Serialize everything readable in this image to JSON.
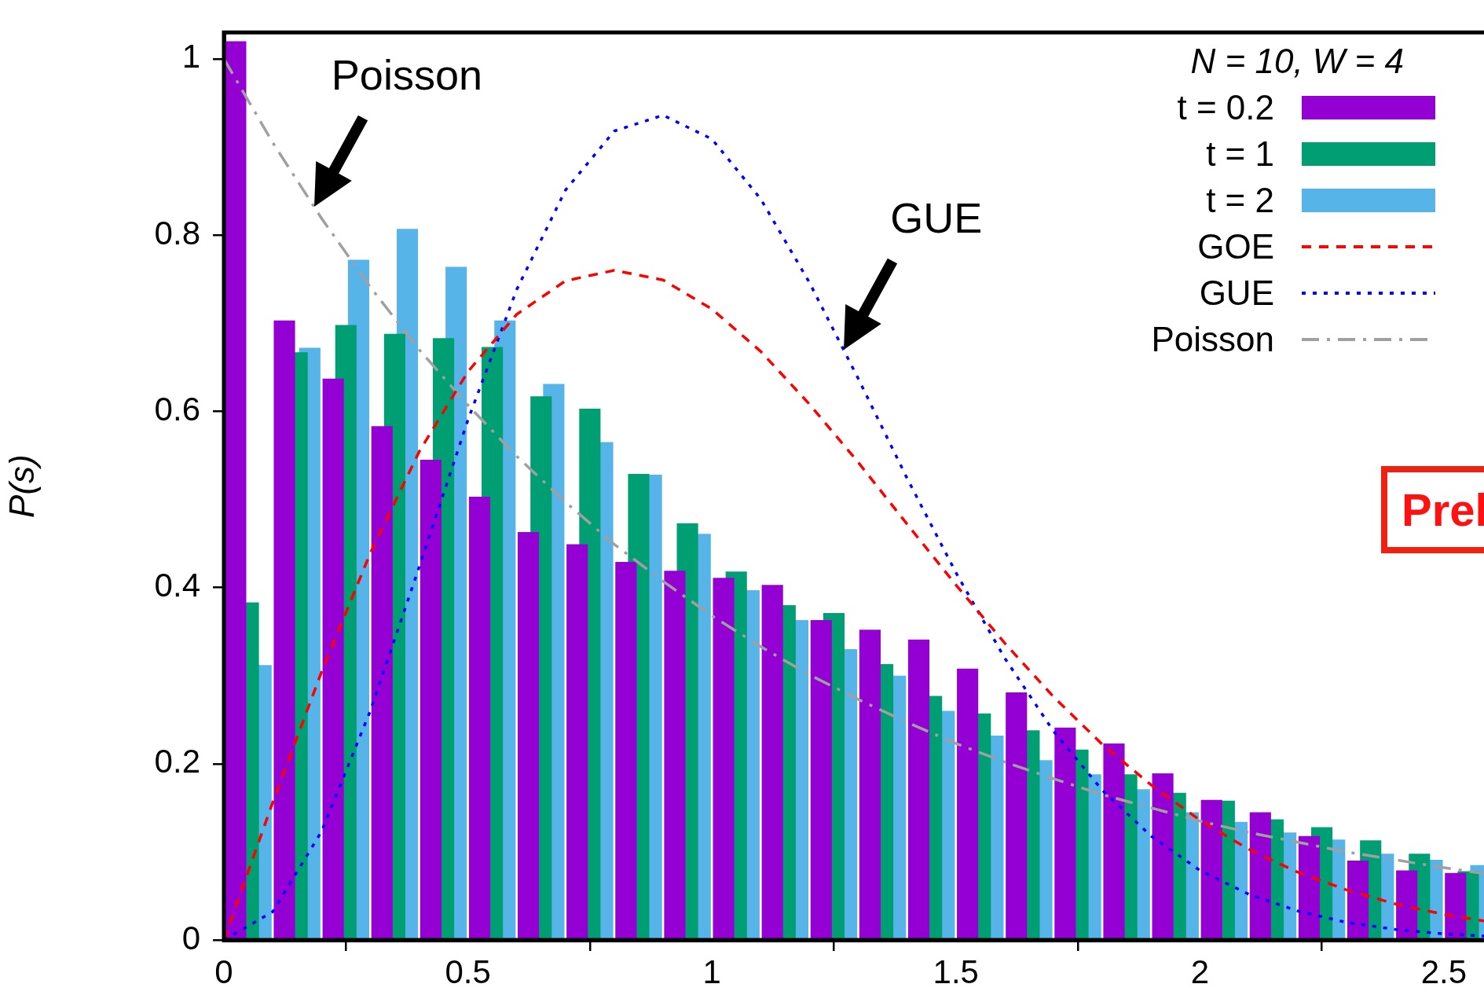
{
  "chart_data": {
    "type": "histogram",
    "ylabel": "P(s)",
    "legend_title": "N = 10, W = 4",
    "legend": "top right",
    "grid": false,
    "bins": [
      0,
      0.1,
      0.2,
      0.3,
      0.4,
      0.5,
      0.6,
      0.7,
      0.8,
      0.9,
      1.0,
      1.1,
      1.2,
      1.3,
      1.4,
      1.5,
      1.6,
      1.7,
      1.8,
      1.9,
      2.0,
      2.1,
      2.2,
      2.3,
      2.4,
      2.5,
      2.6
    ],
    "series": [
      {
        "name": "t = 0.2",
        "color": "#9400d3",
        "values": [
          1.02,
          0.703,
          0.637,
          0.583,
          0.545,
          0.503,
          0.463,
          0.449,
          0.429,
          0.419,
          0.411,
          0.403,
          0.363,
          0.352,
          0.341,
          0.308,
          0.281,
          0.241,
          0.223,
          0.189,
          0.159,
          0.145,
          0.118,
          0.09,
          0.079,
          0.076
        ]
      },
      {
        "name": "t = 1",
        "color": "#009e73",
        "values": [
          0.383,
          0.667,
          0.698,
          0.688,
          0.683,
          0.673,
          0.617,
          0.603,
          0.529,
          0.473,
          0.418,
          0.38,
          0.371,
          0.313,
          0.277,
          0.257,
          0.238,
          0.216,
          0.188,
          0.167,
          0.158,
          0.137,
          0.128,
          0.113,
          0.098,
          0.078
        ]
      },
      {
        "name": "t = 2",
        "color": "#56b4e9",
        "values": [
          0.312,
          0.672,
          0.772,
          0.807,
          0.764,
          0.703,
          0.631,
          0.565,
          0.528,
          0.461,
          0.397,
          0.363,
          0.33,
          0.3,
          0.26,
          0.232,
          0.204,
          0.188,
          0.171,
          0.145,
          0.134,
          0.122,
          0.114,
          0.098,
          0.091,
          0.085
        ]
      },
      {
        "name": "GOE",
        "type": "line",
        "color": "#ff0000",
        "line_style": "dashed",
        "x": [
          0,
          0.1,
          0.2,
          0.3,
          0.4,
          0.5,
          0.6,
          0.7,
          0.8,
          0.9,
          1.0,
          1.1,
          1.2,
          1.3,
          1.4,
          1.5,
          1.6,
          1.7,
          1.8,
          1.9,
          2.0,
          2.1,
          2.2,
          2.3,
          2.4,
          2.5,
          2.6
        ],
        "values": [
          0,
          0.156,
          0.304,
          0.439,
          0.554,
          0.645,
          0.71,
          0.748,
          0.76,
          0.749,
          0.716,
          0.668,
          0.608,
          0.542,
          0.472,
          0.403,
          0.337,
          0.276,
          0.222,
          0.176,
          0.136,
          0.103,
          0.077,
          0.057,
          0.041,
          0.029,
          0.02
        ]
      },
      {
        "name": "GUE",
        "type": "line",
        "color": "#0000ff",
        "line_style": "dotted",
        "x": [
          0,
          0.1,
          0.2,
          0.3,
          0.4,
          0.5,
          0.6,
          0.7,
          0.8,
          0.9,
          1.0,
          1.1,
          1.2,
          1.3,
          1.4,
          1.5,
          1.6,
          1.7,
          1.8,
          1.9,
          2.0,
          2.1,
          2.2,
          2.3,
          2.4,
          2.5,
          2.6
        ],
        "values": [
          0,
          0.032,
          0.123,
          0.26,
          0.423,
          0.59,
          0.738,
          0.851,
          0.918,
          0.936,
          0.909,
          0.841,
          0.746,
          0.637,
          0.524,
          0.417,
          0.32,
          0.237,
          0.17,
          0.118,
          0.079,
          0.052,
          0.033,
          0.02,
          0.012,
          0.007,
          0.004
        ]
      },
      {
        "name": "Poisson",
        "type": "line",
        "color": "#a0a0a0",
        "line_style": "dashdot",
        "x": [
          0,
          0.1,
          0.2,
          0.3,
          0.4,
          0.5,
          0.6,
          0.7,
          0.8,
          0.9,
          1.0,
          1.1,
          1.2,
          1.3,
          1.4,
          1.5,
          1.6,
          1.7,
          1.8,
          1.9,
          2.0,
          2.1,
          2.2,
          2.3,
          2.4,
          2.5,
          2.6
        ],
        "values": [
          1,
          0.905,
          0.819,
          0.741,
          0.67,
          0.607,
          0.549,
          0.497,
          0.449,
          0.407,
          0.368,
          0.333,
          0.301,
          0.273,
          0.247,
          0.223,
          0.202,
          0.183,
          0.165,
          0.15,
          0.135,
          0.122,
          0.111,
          0.1,
          0.091,
          0.082,
          0.074
        ]
      }
    ],
    "xlim": [
      0,
      2.6
    ],
    "ylim": [
      0,
      1.03
    ],
    "xticks": [
      0,
      0.5,
      1,
      1.5,
      2,
      2.5
    ],
    "yticks": [
      0,
      0.2,
      0.4,
      0.6,
      0.8,
      1
    ],
    "annotations": [
      {
        "text": "Poisson",
        "x": 0.185,
        "y": 0.832
      },
      {
        "text": "GUE",
        "x": 1.27,
        "y": 0.67
      },
      "Prel"
    ]
  }
}
